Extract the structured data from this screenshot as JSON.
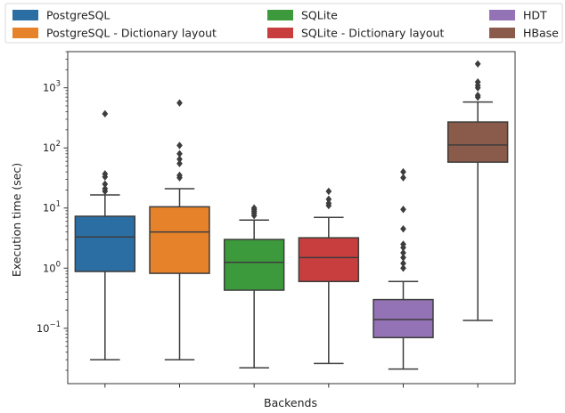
{
  "chart_data": {
    "type": "box",
    "xlabel": "Backends",
    "ylabel": "Execution time (sec)",
    "yscale": "log",
    "ylim": [
      0.012,
      4000
    ],
    "y_ticks": [
      {
        "value": 0.1,
        "base": "10",
        "exp": "−1"
      },
      {
        "value": 1,
        "base": "10",
        "exp": "0"
      },
      {
        "value": 10,
        "base": "10",
        "exp": "1"
      },
      {
        "value": 100,
        "base": "10",
        "exp": "2"
      },
      {
        "value": 1000,
        "base": "10",
        "exp": "3"
      }
    ],
    "grid": false,
    "legend_position": "top, above plot (3 columns)",
    "series": [
      {
        "name": "PostgreSQL",
        "color": "#2b6ea4",
        "whislo": 0.03,
        "q1": 0.88,
        "med": 3.3,
        "q3": 7.3,
        "whishi": 16.5,
        "fliers": [
          19,
          21,
          25,
          33,
          37,
          370
        ]
      },
      {
        "name": "PostgreSQL - Dictionary layout",
        "color": "#e6822a",
        "whislo": 0.03,
        "q1": 0.82,
        "med": 4.0,
        "q3": 10.5,
        "whishi": 21,
        "fliers": [
          32,
          35,
          55,
          65,
          80,
          110,
          560
        ]
      },
      {
        "name": "SQLite",
        "color": "#3c9a3c",
        "whislo": 0.022,
        "q1": 0.43,
        "med": 1.25,
        "q3": 3.0,
        "whishi": 6.3,
        "fliers": [
          7.5,
          8.2,
          8.8,
          9.4,
          10
        ]
      },
      {
        "name": "SQLite - Dictionary layout",
        "color": "#c83e3f",
        "whislo": 0.026,
        "q1": 0.6,
        "med": 1.5,
        "q3": 3.2,
        "whishi": 7.0,
        "fliers": [
          11,
          12,
          14,
          19
        ]
      },
      {
        "name": "HDT",
        "color": "#9372b5",
        "whislo": 0.021,
        "q1": 0.07,
        "med": 0.14,
        "q3": 0.3,
        "whishi": 0.6,
        "fliers": [
          1.0,
          1.2,
          1.5,
          1.8,
          2.2,
          2.5,
          4.5,
          9.5,
          32,
          40
        ]
      },
      {
        "name": "HBase",
        "color": "#8a5a4a",
        "whislo": 0.135,
        "q1": 58,
        "med": 112,
        "q3": 270,
        "whishi": 580,
        "fliers": [
          700,
          750,
          1000,
          1100,
          1250,
          2500
        ]
      }
    ]
  }
}
